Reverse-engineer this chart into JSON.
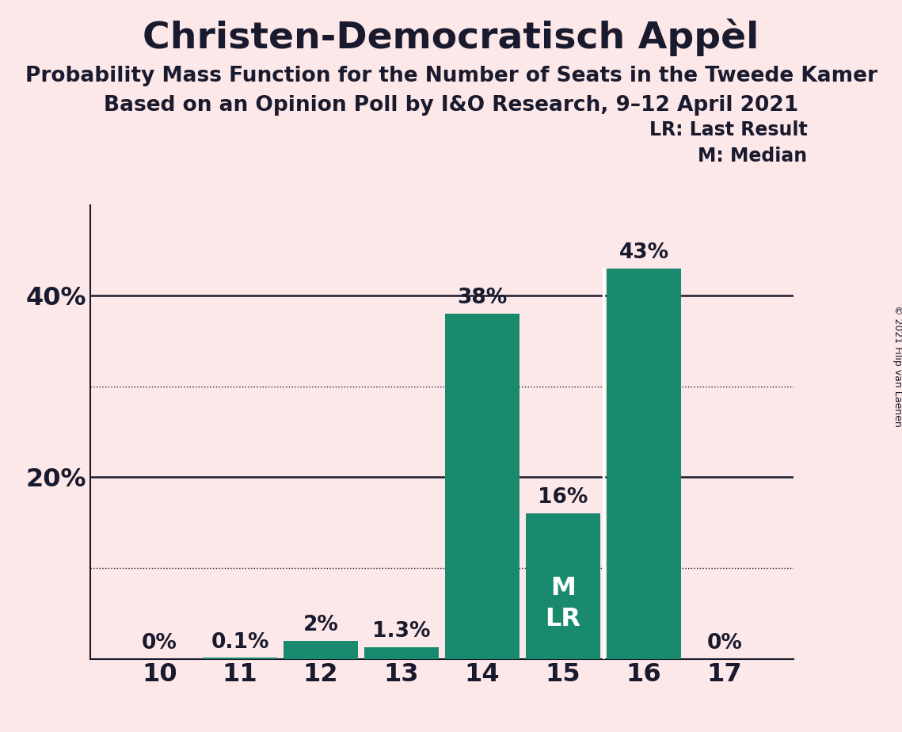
{
  "title": "Christen-Democratisch Appèl",
  "subtitle1": "Probability Mass Function for the Number of Seats in the Tweede Kamer",
  "subtitle2": "Based on an Opinion Poll by I&O Research, 9–12 April 2021",
  "copyright": "© 2021 Filip van Laenen",
  "categories": [
    10,
    11,
    12,
    13,
    14,
    15,
    16,
    17
  ],
  "values": [
    0.0,
    0.1,
    2.0,
    1.3,
    38.0,
    16.0,
    43.0,
    0.0
  ],
  "bar_color": "#1a8a6e",
  "background_color": "#fce8e8",
  "text_color": "#1a1a2e",
  "ylim": [
    0,
    50
  ],
  "solid_gridlines": [
    20,
    40
  ],
  "dotted_gridlines": [
    10,
    30
  ],
  "bar_labels": {
    "10": "0%",
    "11": "0.1%",
    "12": "2%",
    "13": "1.3%",
    "14": "38%",
    "15": "16%",
    "16": "43%",
    "17": "0%"
  },
  "legend_lr": "LR: Last Result",
  "legend_m": "M: Median",
  "title_fontsize": 34,
  "subtitle_fontsize": 19,
  "label_fontsize": 19,
  "tick_fontsize": 23,
  "ytick_labels_solid": {
    "20": "20%",
    "40": "40%"
  }
}
